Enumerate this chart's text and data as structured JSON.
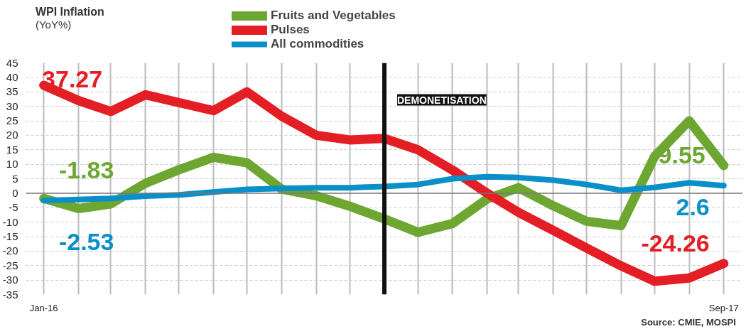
{
  "chart_data": {
    "type": "line",
    "title": "WPI Inflation",
    "subtitle": "(YoY%)",
    "x": [
      "2016-01",
      "2016-02",
      "2016-03",
      "2016-04",
      "2016-05",
      "2016-06",
      "2016-07",
      "2016-08",
      "2016-09",
      "2016-10",
      "2016-11",
      "2016-12",
      "2017-01",
      "2017-02",
      "2017-03",
      "2017-04",
      "2017-05",
      "2017-06",
      "2017-07",
      "2017-08",
      "2017-09"
    ],
    "series": [
      {
        "name": "Fruits and Vegetables",
        "color": "#6ea632",
        "values": [
          -1.83,
          -5.3,
          -3.7,
          3.4,
          8.1,
          12.4,
          10.5,
          1.4,
          -0.9,
          -4.5,
          -8.9,
          -13.5,
          -10.5,
          -2,
          1.9,
          -4.3,
          -9.7,
          -11.2,
          12.7,
          25,
          9.55
        ],
        "value_labels": [
          "-1.83",
          null,
          null,
          null,
          null,
          null,
          null,
          null,
          null,
          null,
          null,
          null,
          null,
          null,
          null,
          null,
          null,
          null,
          null,
          null,
          "9.55"
        ]
      },
      {
        "name": "Pulses",
        "color": "#e31e24",
        "values": [
          37.27,
          32,
          28.2,
          34,
          31.3,
          28.5,
          35,
          26.6,
          20,
          18.4,
          18.9,
          15,
          8,
          0,
          -6.6,
          -12.8,
          -18.9,
          -25.1,
          -30.4,
          -29.3,
          -24.26
        ],
        "value_labels": [
          "37.27",
          null,
          null,
          null,
          null,
          null,
          null,
          null,
          null,
          null,
          null,
          null,
          null,
          null,
          null,
          null,
          null,
          null,
          null,
          null,
          "-24.26"
        ]
      },
      {
        "name": "All commodities",
        "color": "#0b8fc8",
        "values": [
          -2.53,
          -2.2,
          -1.8,
          -1,
          -0.6,
          0.4,
          1.3,
          1.6,
          1.9,
          1.9,
          2.3,
          3,
          5,
          5.7,
          5.4,
          4.5,
          3,
          1,
          2,
          3.6,
          2.6
        ],
        "value_labels": [
          "-2.53",
          null,
          null,
          null,
          null,
          null,
          null,
          null,
          null,
          null,
          null,
          null,
          null,
          null,
          null,
          null,
          null,
          null,
          null,
          null,
          "2.6"
        ]
      }
    ],
    "xlim": [
      "2015-12-16",
      "2017-09-18"
    ],
    "xticks": [
      {
        "value": "2016-01",
        "label": "Jan-16"
      },
      {
        "value": "2016-02",
        "label": null
      },
      {
        "value": "2016-03",
        "label": null
      },
      {
        "value": "2016-04",
        "label": null
      },
      {
        "value": "2016-05",
        "label": null
      },
      {
        "value": "2016-06",
        "label": null
      },
      {
        "value": "2016-07",
        "label": null
      },
      {
        "value": "2016-08",
        "label": null
      },
      {
        "value": "2016-09",
        "label": null
      },
      {
        "value": "2016-10",
        "label": null
      },
      {
        "value": "2016-11",
        "label": null
      },
      {
        "value": "2016-12",
        "label": null
      },
      {
        "value": "2017-01",
        "label": null
      },
      {
        "value": "2017-02",
        "label": null
      },
      {
        "value": "2017-03",
        "label": null
      },
      {
        "value": "2017-04",
        "label": null
      },
      {
        "value": "2017-05",
        "label": null
      },
      {
        "value": "2017-06",
        "label": null
      },
      {
        "value": "2017-07",
        "label": null
      },
      {
        "value": "2017-08",
        "label": null
      },
      {
        "value": "2017-09",
        "label": "Sep-17"
      }
    ],
    "ylim": [
      -35,
      45
    ],
    "yticks": [
      -35,
      -30,
      -25,
      -20,
      -15,
      -10,
      -5,
      0,
      5,
      10,
      15,
      20,
      25,
      30,
      35,
      40,
      45
    ],
    "ref_lines": [
      {
        "axis": "x",
        "value": "2016-11",
        "label": "DEMONETISATION",
        "color": "#111111"
      }
    ],
    "annotations": [
      "Source: CMIE, MOSPI"
    ],
    "grid": true,
    "legend": "top",
    "line_style": "solid",
    "marker": "none"
  }
}
